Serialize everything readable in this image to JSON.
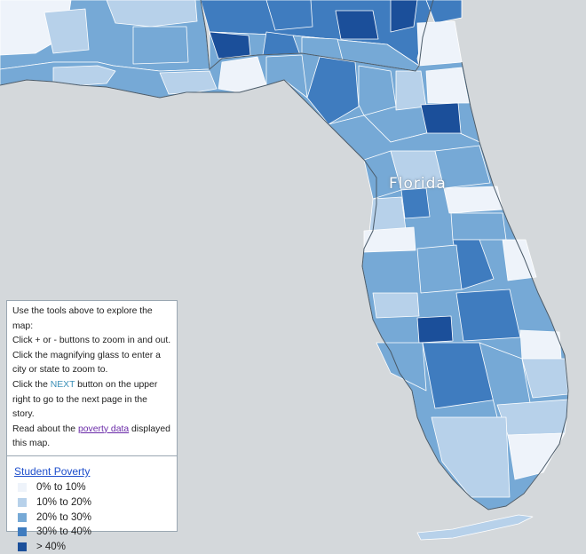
{
  "map": {
    "state_label": "Florida",
    "colors": {
      "water": "#d4d8db",
      "border": "#ffffff",
      "state_outline": "#4a5a68"
    }
  },
  "info": {
    "line1": "Use the tools above to explore the map:",
    "line2": "Click + or - buttons to zoom in and out.",
    "line3": "Click the magnifying glass to enter a city or state to zoom to.",
    "line4_pre": "Click the ",
    "line4_next": "NEXT",
    "line4_post": " button on the upper right to go to the next page in the story.",
    "line5_pre": "Read about the ",
    "line5_link": "poverty data",
    "line5_post": " displayed this map."
  },
  "legend": {
    "title": "Student Poverty",
    "items": [
      {
        "label": "0% to 10%",
        "color": "#eef3fa"
      },
      {
        "label": "10% to 20%",
        "color": "#b7d1ea"
      },
      {
        "label": "20% to 30%",
        "color": "#76a9d6"
      },
      {
        "label": "30% to 40%",
        "color": "#3f7cbf"
      },
      {
        "label": "> 40%",
        "color": "#1b4f9a"
      }
    ]
  }
}
